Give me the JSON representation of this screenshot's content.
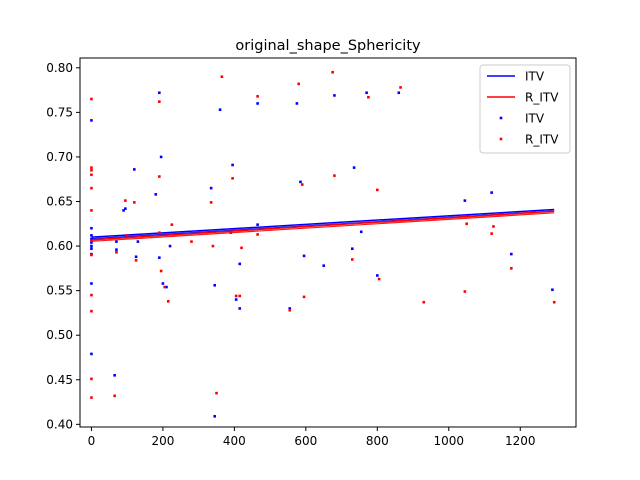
{
  "chart_data": {
    "type": "scatter",
    "title": "original_shape_Sphericity",
    "xlabel": "",
    "ylabel": "",
    "xlim": [
      -32,
      1356
    ],
    "ylim": [
      0.397,
      0.811
    ],
    "xticks": [
      0,
      200,
      400,
      600,
      800,
      1000,
      1200
    ],
    "yticks": [
      0.4,
      0.45,
      0.5,
      0.55,
      0.6,
      0.65,
      0.7,
      0.75,
      0.8
    ],
    "grid": false,
    "legend_position": "top-right",
    "colors": {
      "ITV": "#0000ff",
      "R_ITV": "#ff0000"
    },
    "fit_lines": [
      {
        "name": "ITV",
        "x": [
          0,
          1295
        ],
        "y": [
          0.61,
          0.641
        ],
        "color": "#0000ff"
      },
      {
        "name": "R_ITV",
        "x": [
          0,
          1295
        ],
        "y": [
          0.607,
          0.639
        ],
        "color": "#ff0000"
      }
    ],
    "series": [
      {
        "name": "ITV",
        "color": "#0000ff",
        "points": [
          [
            0,
            0.741
          ],
          [
            0,
            0.62
          ],
          [
            0,
            0.612
          ],
          [
            0,
            0.608
          ],
          [
            0,
            0.604
          ],
          [
            0,
            0.6
          ],
          [
            0,
            0.597
          ],
          [
            0,
            0.591
          ],
          [
            0,
            0.558
          ],
          [
            0,
            0.479
          ],
          [
            65,
            0.455
          ],
          [
            70,
            0.605
          ],
          [
            70,
            0.596
          ],
          [
            90,
            0.64
          ],
          [
            95,
            0.642
          ],
          [
            120,
            0.686
          ],
          [
            125,
            0.588
          ],
          [
            130,
            0.605
          ],
          [
            180,
            0.658
          ],
          [
            190,
            0.772
          ],
          [
            190,
            0.587
          ],
          [
            195,
            0.7
          ],
          [
            200,
            0.558
          ],
          [
            210,
            0.554
          ],
          [
            220,
            0.6
          ],
          [
            335,
            0.665
          ],
          [
            345,
            0.556
          ],
          [
            345,
            0.409
          ],
          [
            360,
            0.753
          ],
          [
            395,
            0.691
          ],
          [
            405,
            0.54
          ],
          [
            415,
            0.53
          ],
          [
            415,
            0.58
          ],
          [
            465,
            0.76
          ],
          [
            465,
            0.624
          ],
          [
            555,
            0.53
          ],
          [
            575,
            0.76
          ],
          [
            585,
            0.672
          ],
          [
            595,
            0.589
          ],
          [
            650,
            0.578
          ],
          [
            680,
            0.769
          ],
          [
            730,
            0.597
          ],
          [
            735,
            0.688
          ],
          [
            755,
            0.616
          ],
          [
            770,
            0.772
          ],
          [
            800,
            0.567
          ],
          [
            860,
            0.772
          ],
          [
            1045,
            0.651
          ],
          [
            1120,
            0.66
          ],
          [
            1175,
            0.591
          ],
          [
            1290,
            0.551
          ]
        ]
      },
      {
        "name": "R_ITV",
        "color": "#ff0000",
        "points": [
          [
            0,
            0.765
          ],
          [
            0,
            0.688
          ],
          [
            0,
            0.685
          ],
          [
            0,
            0.68
          ],
          [
            0,
            0.665
          ],
          [
            0,
            0.64
          ],
          [
            0,
            0.606
          ],
          [
            0,
            0.59
          ],
          [
            0,
            0.545
          ],
          [
            0,
            0.527
          ],
          [
            0,
            0.451
          ],
          [
            0,
            0.43
          ],
          [
            65,
            0.432
          ],
          [
            70,
            0.593
          ],
          [
            95,
            0.651
          ],
          [
            100,
            0.612
          ],
          [
            120,
            0.649
          ],
          [
            125,
            0.584
          ],
          [
            190,
            0.762
          ],
          [
            190,
            0.678
          ],
          [
            190,
            0.615
          ],
          [
            195,
            0.572
          ],
          [
            205,
            0.554
          ],
          [
            215,
            0.538
          ],
          [
            225,
            0.624
          ],
          [
            280,
            0.605
          ],
          [
            335,
            0.649
          ],
          [
            340,
            0.6
          ],
          [
            350,
            0.435
          ],
          [
            365,
            0.79
          ],
          [
            390,
            0.615
          ],
          [
            395,
            0.676
          ],
          [
            405,
            0.544
          ],
          [
            415,
            0.544
          ],
          [
            420,
            0.598
          ],
          [
            465,
            0.768
          ],
          [
            465,
            0.613
          ],
          [
            555,
            0.528
          ],
          [
            580,
            0.782
          ],
          [
            590,
            0.669
          ],
          [
            595,
            0.543
          ],
          [
            675,
            0.795
          ],
          [
            680,
            0.679
          ],
          [
            730,
            0.585
          ],
          [
            775,
            0.767
          ],
          [
            800,
            0.663
          ],
          [
            805,
            0.563
          ],
          [
            865,
            0.778
          ],
          [
            930,
            0.537
          ],
          [
            1045,
            0.549
          ],
          [
            1050,
            0.625
          ],
          [
            1120,
            0.614
          ],
          [
            1125,
            0.622
          ],
          [
            1175,
            0.575
          ],
          [
            1295,
            0.537
          ]
        ]
      }
    ],
    "legend": [
      {
        "label": "ITV",
        "kind": "line",
        "color": "#0000ff"
      },
      {
        "label": "R_ITV",
        "kind": "line",
        "color": "#ff0000"
      },
      {
        "label": "ITV",
        "kind": "marker",
        "color": "#0000ff"
      },
      {
        "label": "R_ITV",
        "kind": "marker",
        "color": "#ff0000"
      }
    ]
  }
}
